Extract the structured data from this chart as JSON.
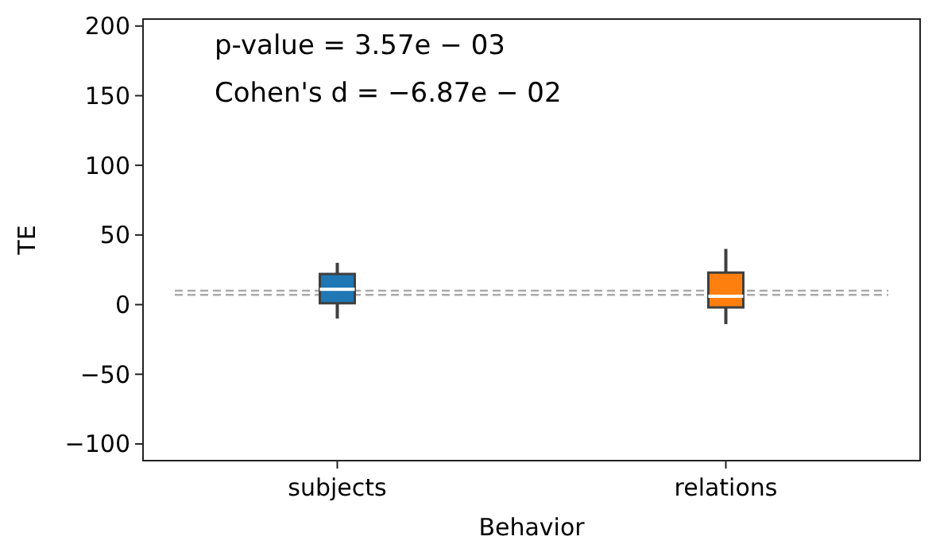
{
  "chart_data": {
    "type": "box",
    "xlabel": "Behavior",
    "ylabel": "TE",
    "categories": [
      "subjects",
      "relations"
    ],
    "colors": [
      "#1f77b4",
      "#ff7f0e"
    ],
    "boxes": [
      {
        "low": -10,
        "q1": 1,
        "median": 11,
        "q3": 22,
        "high": 30
      },
      {
        "low": -14,
        "q1": -2,
        "median": 6,
        "q3": 23,
        "high": 40
      }
    ],
    "ylim": [
      -112,
      205
    ],
    "yticks": [
      -100,
      -50,
      0,
      50,
      100,
      150,
      200
    ],
    "ref_lines": [
      {
        "axis": "y",
        "value": 10,
        "color": "#aaaaaa",
        "line_style": "dashed"
      },
      {
        "axis": "y",
        "value": 7,
        "color": "#aaaaaa",
        "line_style": "dashed"
      }
    ],
    "annotations": [
      "p-value = 3.57e − 03",
      "Cohen's d = −6.87e − 02"
    ],
    "grid": false
  }
}
